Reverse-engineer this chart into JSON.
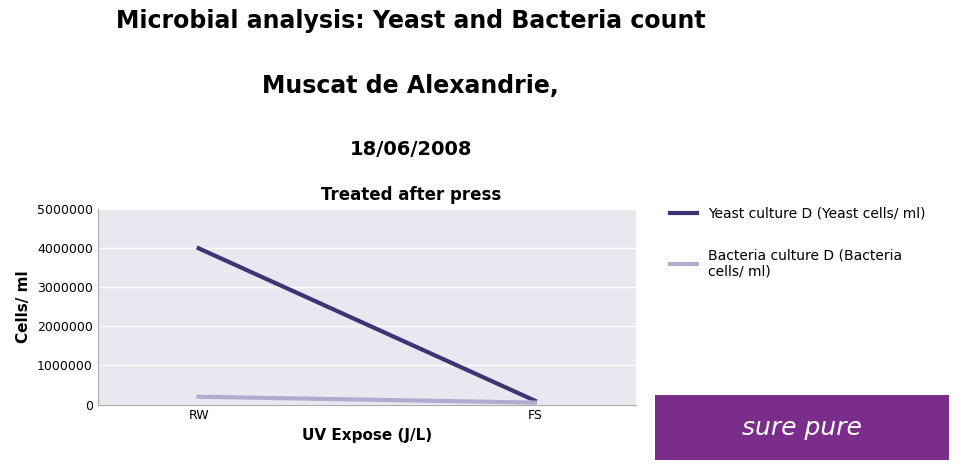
{
  "title_line1": "Microbial analysis: Yeast and Bacteria count",
  "title_line2": "Muscat de Alexandrie,",
  "title_line3": "18/06/2008",
  "subtitle": "Treated after press",
  "xlabel": "UV Expose (J/L)",
  "ylabel": "Cells/ ml",
  "x_labels": [
    "RW",
    "FS"
  ],
  "x_positions": [
    0,
    1
  ],
  "yeast_values": [
    4000000,
    100000
  ],
  "bacteria_values": [
    200000,
    50000
  ],
  "yeast_color": "#3d3473",
  "bacteria_color": "#b0acd0",
  "ylim": [
    0,
    5000000
  ],
  "yticks": [
    0,
    1000000,
    2000000,
    3000000,
    4000000,
    5000000
  ],
  "plot_bg_color": "#e8e8f0",
  "fig_bg_color": "#ffffff",
  "legend_yeast": "Yeast culture D (Yeast cells/ ml)",
  "legend_bacteria": "Bacteria culture D (Bacteria\ncells/ ml)",
  "surepure_bg": "#7b2d8b",
  "surepure_text": "sure pure",
  "surepure_text_color": "#ffffff",
  "title_fontsize": 17,
  "subtitle_fontsize": 12,
  "axis_label_fontsize": 11,
  "tick_fontsize": 9,
  "legend_fontsize": 10,
  "line_width": 3
}
